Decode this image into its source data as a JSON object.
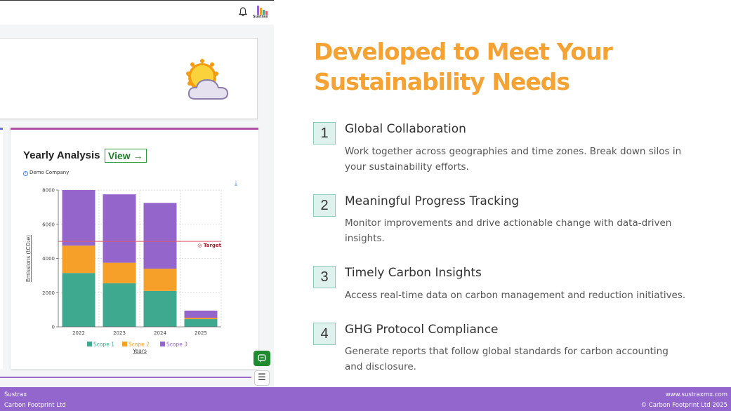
{
  "app": {
    "logo_text": "Sustrax"
  },
  "yearly_analysis": {
    "title": "Yearly Analysis",
    "view_label": "View →",
    "company": "Demo Company"
  },
  "chart_data": {
    "type": "bar",
    "stacked": true,
    "categories": [
      "2022",
      "2023",
      "2024",
      "2025"
    ],
    "series": [
      {
        "name": "Scope 1",
        "color": "#3ea98f",
        "values": [
          3150,
          2550,
          2100,
          450
        ]
      },
      {
        "name": "Scope 2",
        "color": "#f6a02a",
        "values": [
          1600,
          1200,
          1300,
          80
        ]
      },
      {
        "name": "Scope 3",
        "color": "#9466cc",
        "values": [
          3250,
          4000,
          3850,
          420
        ]
      }
    ],
    "target": {
      "label": "Target",
      "value": 5000,
      "color": "#e05a6e"
    },
    "ylabel": "Emissions (tCO₂e)",
    "xlabel": "Years",
    "ylim": [
      0,
      8000
    ],
    "yticks": [
      "0",
      "2000",
      "4000",
      "6000",
      "8000"
    ],
    "grid": true,
    "legend": "bottom"
  },
  "marketing": {
    "heading_line1": "Developed to Meet Your",
    "heading_line2": "Sustainability Needs",
    "features": [
      {
        "number": "1",
        "title": "Global Collaboration",
        "desc_line1": "Work together across geographies and time zones. Break down silos in",
        "desc_line2": "your sustainability efforts."
      },
      {
        "number": "2",
        "title": "Meaningful Progress Tracking",
        "desc_line1": "Monitor improvements and drive actionable change with data-driven",
        "desc_line2": "insights."
      },
      {
        "number": "3",
        "title": "Timely Carbon Insights",
        "desc_line1": "Access real-time data on carbon management and reduction initiatives.",
        "desc_line2": ""
      },
      {
        "number": "4",
        "title": "GHG Protocol Compliance",
        "desc_line1": "Generate reports that follow global standards for carbon accounting",
        "desc_line2": "and disclosure."
      }
    ]
  },
  "footer": {
    "left_line1": "Sustrax",
    "left_line2": "Carbon Footprint Ltd",
    "right_line1": "www.sustraxmx.com",
    "right_line2": "© Carbon Footprint Ltd 2025"
  }
}
